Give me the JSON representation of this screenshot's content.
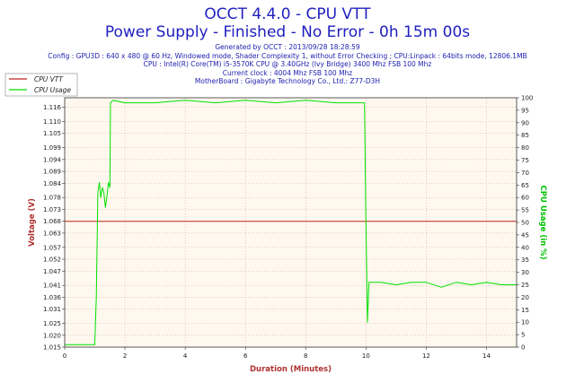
{
  "header": {
    "title": "OCCT 4.4.0 - CPU VTT",
    "subtitle": "Power Supply - Finished - No Error - 0h 15m 00s",
    "generated": "Generated by OCCT : 2013/09/28 18:28:59",
    "config": "Config : GPU3D : 640 x 480 @ 60 Hz, Windowed mode, Shader Complexity 1, without Error Checking ; CPU:Linpack : 64bits mode, 12806.1MB",
    "cpu": "CPU : Intel(R) Core(TM) i5-3570K CPU @ 3.40GHz (Ivy Bridge) 3400 Mhz FSB 100 Mhz",
    "clock": "Current clock : 4004 Mhz FSB 100 Mhz",
    "motherboard": "MotherBoard : Gigabyte Technology Co., Ltd.: Z77-D3H"
  },
  "colors": {
    "title": "#2020c0",
    "plot_background": "#fff8ee",
    "grid": "#c8a080",
    "vtt": "#c02020",
    "usage": "#00e000",
    "ylabel_left": "#b03030",
    "ylabel_right": "#00c000",
    "xlabel": "#b03030"
  },
  "chart_data": {
    "type": "line",
    "xlabel": "Duration (Minutes)",
    "ylabel": "Voltage (V)",
    "ylabel_right": "CPU Usage (in %)",
    "xlim": [
      0,
      15
    ],
    "ylim": [
      1.015,
      1.12
    ],
    "ylim_right": [
      0,
      100
    ],
    "x_ticks": [
      0,
      2,
      4,
      6,
      8,
      10,
      12,
      14
    ],
    "y_ticks": [
      "1.015",
      "1.020",
      "1.025",
      "1.031",
      "1.036",
      "1.041",
      "1.047",
      "1.052",
      "1.057",
      "1.063",
      "1.068",
      "1.073",
      "1.078",
      "1.084",
      "1.089",
      "1.094",
      "1.099",
      "1.105",
      "1.110",
      "1.116"
    ],
    "y_ticks_right": [
      0,
      5,
      10,
      15,
      20,
      25,
      30,
      35,
      40,
      45,
      50,
      55,
      60,
      65,
      70,
      75,
      80,
      85,
      90,
      95,
      100
    ],
    "grid": true,
    "legend_position": "top-left",
    "series": [
      {
        "name": "CPU VTT",
        "axis": "left",
        "x": [
          0,
          15
        ],
        "values": [
          1.068,
          1.068
        ]
      },
      {
        "name": "CPU Usage",
        "axis": "right",
        "x": [
          0,
          0.9,
          1.0,
          1.05,
          1.1,
          1.15,
          1.2,
          1.25,
          1.3,
          1.35,
          1.4,
          1.45,
          1.5,
          1.52,
          1.6,
          2.0,
          3.0,
          4.0,
          5.0,
          6.0,
          7.0,
          8.0,
          9.0,
          9.95,
          10.0,
          10.05,
          10.1,
          10.5,
          11.0,
          11.5,
          12.0,
          12.5,
          13.0,
          13.5,
          14.0,
          14.5,
          15.0
        ],
        "values": [
          1,
          1,
          1,
          20,
          62,
          66,
          60,
          64,
          62,
          56,
          60,
          66,
          64,
          98,
          99,
          98,
          98,
          99,
          98,
          99,
          98,
          99,
          98,
          98,
          50,
          10,
          26,
          26,
          25,
          26,
          26,
          24,
          26,
          25,
          26,
          25,
          25
        ]
      }
    ]
  }
}
